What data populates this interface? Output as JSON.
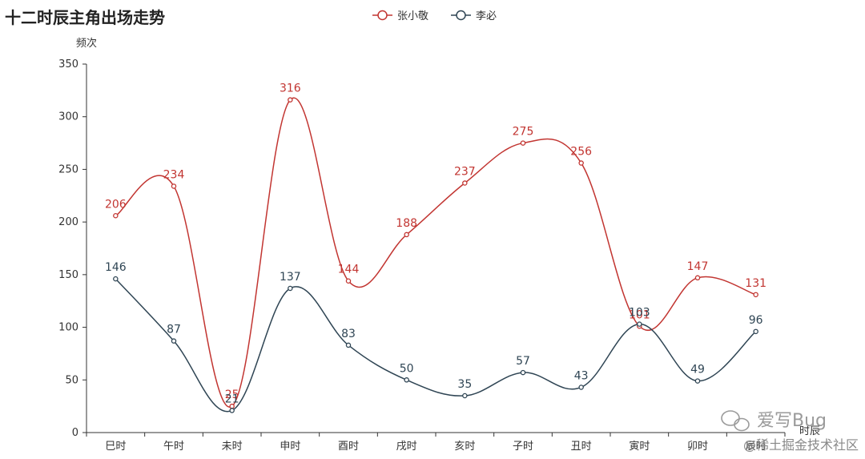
{
  "chart_data": {
    "type": "line",
    "title": "十二时辰主角出场走势",
    "xlabel": "时辰",
    "ylabel": "频次",
    "ylim": [
      0,
      350
    ],
    "yticks": [
      0,
      50,
      100,
      150,
      200,
      250,
      300,
      350
    ],
    "categories": [
      "巳时",
      "午时",
      "未时",
      "申时",
      "酉时",
      "戌时",
      "亥时",
      "子时",
      "丑时",
      "寅时",
      "卯时",
      "辰时"
    ],
    "series": [
      {
        "name": "张小敬",
        "color": "#c23531",
        "values": [
          206,
          234,
          25,
          316,
          144,
          188,
          237,
          275,
          256,
          101,
          147,
          131
        ]
      },
      {
        "name": "李必",
        "color": "#2f4554",
        "values": [
          146,
          87,
          21,
          137,
          83,
          50,
          35,
          57,
          43,
          103,
          49,
          96
        ]
      }
    ],
    "legend_position": "top-center",
    "grid": false,
    "smooth": true
  },
  "watermark": {
    "line1": "爱写Bug",
    "line2": "@稀土掘金技术社区"
  }
}
